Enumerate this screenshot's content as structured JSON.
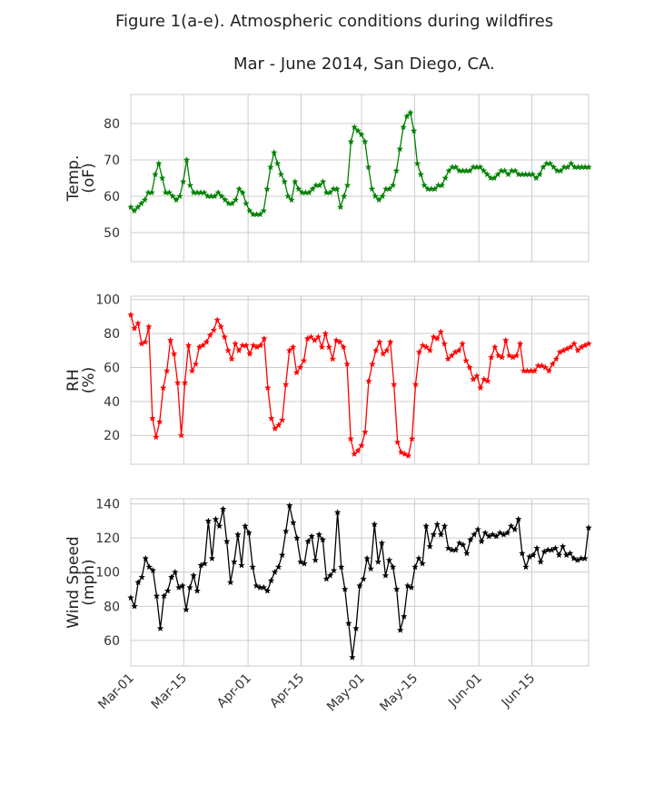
{
  "figure": {
    "title": "Figure 1(a-e). Atmospheric conditions during wildfires",
    "subtitle": "Mar - June 2014, San Diego, CA."
  },
  "chart_data": [
    {
      "type": "line",
      "title": "Figure 1(a-e). Atmospheric conditions during wildfires",
      "xlabel": "",
      "ylabel": [
        "Temp.",
        "(oF)"
      ],
      "x_start": "2014-03-01",
      "x_end": "2014-06-30",
      "xticks": [
        "Mar-01",
        "Mar-15",
        "Apr-01",
        "Apr-15",
        "May-01",
        "May-15",
        "Jun-01",
        "Jun-15"
      ],
      "xtick_dates": [
        "2014-03-01",
        "2014-03-15",
        "2014-04-01",
        "2014-04-15",
        "2014-05-01",
        "2014-05-15",
        "2014-06-01",
        "2014-06-15"
      ],
      "ylim": [
        42,
        88
      ],
      "yticks": [
        50,
        60,
        70,
        80
      ],
      "grid": true,
      "color": "#008000",
      "marker": "star",
      "values": [
        57,
        56,
        57,
        58,
        59,
        61,
        61,
        66,
        69,
        65,
        61,
        61,
        60,
        59,
        60,
        64,
        70,
        63,
        61,
        61,
        61,
        61,
        60,
        60,
        60,
        61,
        60,
        59,
        58,
        58,
        59,
        62,
        61,
        58,
        56,
        55,
        55,
        55,
        56,
        62,
        68,
        72,
        69,
        66,
        64,
        60,
        59,
        64,
        62,
        61,
        61,
        61,
        62,
        63,
        63,
        64,
        61,
        61,
        62,
        62,
        57,
        60,
        63,
        75,
        79,
        78,
        77,
        75,
        68,
        62,
        60,
        59,
        60,
        62,
        62,
        63,
        67,
        73,
        79,
        82,
        83,
        78,
        69,
        66,
        63,
        62,
        62,
        62,
        63,
        63,
        65,
        67,
        68,
        68,
        67,
        67,
        67,
        67,
        68,
        68,
        68,
        67,
        66,
        65,
        65,
        66,
        67,
        67,
        66,
        67,
        67,
        66,
        66,
        66,
        66,
        66,
        65,
        66,
        68,
        69,
        69,
        68,
        67,
        67,
        68,
        68,
        69,
        68,
        68,
        68,
        68,
        68
      ]
    },
    {
      "type": "line",
      "xlabel": "",
      "ylabel": [
        "RH",
        "(%)"
      ],
      "x_start": "2014-03-01",
      "x_end": "2014-06-30",
      "xticks": [
        "Mar-01",
        "Mar-15",
        "Apr-01",
        "Apr-15",
        "May-01",
        "May-15",
        "Jun-01",
        "Jun-15"
      ],
      "xtick_dates": [
        "2014-03-01",
        "2014-03-15",
        "2014-04-01",
        "2014-04-15",
        "2014-05-01",
        "2014-05-15",
        "2014-06-01",
        "2014-06-15"
      ],
      "ylim": [
        3,
        102
      ],
      "yticks": [
        20,
        40,
        60,
        80,
        100
      ],
      "grid": true,
      "color": "#ff0000",
      "marker": "star",
      "values": [
        91,
        83,
        86,
        74,
        75,
        84,
        30,
        19,
        28,
        48,
        58,
        76,
        68,
        51,
        20,
        51,
        73,
        58,
        62,
        72,
        73,
        75,
        79,
        82,
        88,
        84,
        78,
        70,
        65,
        74,
        70,
        73,
        73,
        68,
        73,
        72,
        73,
        77,
        48,
        30,
        24,
        26,
        29,
        50,
        70,
        72,
        57,
        60,
        64,
        77,
        78,
        76,
        78,
        72,
        80,
        72,
        65,
        76,
        75,
        72,
        62,
        18,
        9,
        11,
        14,
        22,
        52,
        62,
        70,
        75,
        68,
        70,
        75,
        50,
        16,
        10,
        9,
        8,
        18,
        50,
        69,
        73,
        72,
        70,
        78,
        77,
        81,
        74,
        65,
        67,
        69,
        70,
        74,
        64,
        60,
        53,
        55,
        48,
        53,
        52,
        66,
        72,
        67,
        66,
        76,
        67,
        66,
        67,
        74,
        58,
        58,
        58,
        58,
        61,
        61,
        60,
        58,
        62,
        65,
        69,
        70,
        71,
        72,
        74,
        70,
        72,
        73,
        74
      ]
    },
    {
      "type": "line",
      "xlabel": "",
      "ylabel": [
        "Wind Speed",
        "(mph)"
      ],
      "x_start": "2014-03-01",
      "x_end": "2014-06-30",
      "xticks": [
        "Mar-01",
        "Mar-15",
        "Apr-01",
        "Apr-15",
        "May-01",
        "May-15",
        "Jun-01",
        "Jun-15"
      ],
      "xtick_dates": [
        "2014-03-01",
        "2014-03-15",
        "2014-04-01",
        "2014-04-15",
        "2014-05-01",
        "2014-05-15",
        "2014-06-01",
        "2014-06-15"
      ],
      "ylim": [
        45,
        143
      ],
      "yticks": [
        60,
        80,
        100,
        120,
        140
      ],
      "grid": true,
      "color": "#000000",
      "marker": "star",
      "values": [
        85,
        80,
        94,
        97,
        108,
        103,
        101,
        86,
        67,
        86,
        89,
        97,
        100,
        91,
        92,
        78,
        91,
        98,
        89,
        104,
        105,
        130,
        108,
        131,
        127,
        137,
        118,
        94,
        106,
        122,
        104,
        127,
        123,
        103,
        92,
        91,
        91,
        89,
        95,
        100,
        103,
        110,
        124,
        139,
        129,
        120,
        106,
        105,
        118,
        121,
        107,
        122,
        119,
        96,
        98,
        101,
        135,
        103,
        90,
        70,
        50,
        67,
        92,
        96,
        108,
        102,
        128,
        106,
        117,
        98,
        107,
        103,
        90,
        66,
        74,
        92,
        91,
        103,
        108,
        105,
        127,
        115,
        122,
        128,
        122,
        127,
        114,
        113,
        113,
        117,
        116,
        111,
        119,
        122,
        125,
        118,
        123,
        121,
        122,
        121,
        123,
        122,
        123,
        127,
        125,
        131,
        111,
        103,
        109,
        110,
        114,
        106,
        112,
        113,
        113,
        114,
        110,
        115,
        110,
        111,
        108,
        107,
        108,
        108,
        126
      ]
    }
  ]
}
